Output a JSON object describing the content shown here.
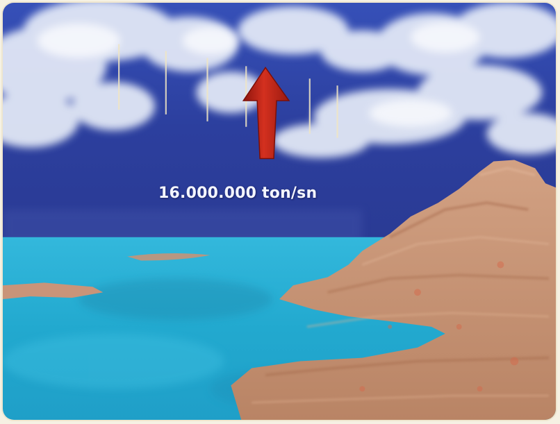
{
  "scene": {
    "caption": "16.000.000 ton/sn",
    "arrow_color": "#c0281c",
    "sky_color": "#2a3d9a",
    "water_color": "#2cb4d6",
    "land_color": "#c9977a"
  }
}
